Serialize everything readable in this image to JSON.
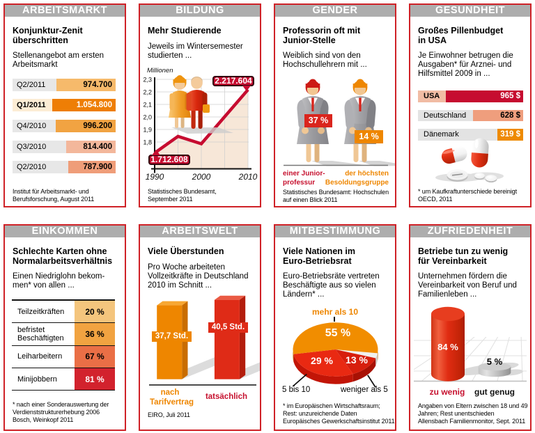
{
  "palette": {
    "border_red": "#cf2127",
    "crimson": "#c60c30",
    "bright_red": "#df2b17",
    "orange": "#ee8600",
    "header_gray": "#adadad",
    "label_gray": "#e7e7e7",
    "area_peach": "#f7e7d8",
    "shadow_gray": "#dcdcdc"
  },
  "panels": {
    "arbeitsmarkt": {
      "header": "ARBEITSMARKT",
      "title": "Konjunktur-Zenit\nüberschritten",
      "subtitle": "Stellenangebot am ersten\nArbeitsmarkt",
      "source": "Institut für Arbeitsmarkt- und\nBerufsforschung, August 2011"
    },
    "bildung": {
      "header": "BILDUNG",
      "title": "Mehr Studierende",
      "subtitle": "Jeweils im Wintersemester\nstudierten ...",
      "source": "Statistisches Bundesamt,\nSeptember 2011"
    },
    "gender": {
      "header": "GENDER",
      "title": "Professorin oft mit\nJunior-Stelle",
      "subtitle": "Weiblich sind von den\nHochschullehrern mit ...",
      "source": "Statistisches Bundesamt: Hochschulen\nauf einen Blick 2011"
    },
    "gesundheit": {
      "header": "GESUNDHEIT",
      "title": "Großes Pillenbudget\nin USA",
      "subtitle": "Je Einwohner betrugen die\nAusgaben* für Arznei- und\nHilfsmittel 2009 in ...",
      "source": "* um Kaufkraftunterschiede bereinigt\nOECD, 2011"
    },
    "einkommen": {
      "header": "EINKOMMEN",
      "title": "Schlechte Karten ohne\nNormalarbeitsverhältnis",
      "subtitle": "Einen Niedriglohn bekom-\nmen* von allen ...",
      "source": "* nach einer Sonderauswertung der\nVerdienststrukturerhebung 2006\nBosch, Weinkopf 2011"
    },
    "arbeitswelt": {
      "header": "ARBEITSWELT",
      "title": "Viele Überstunden",
      "subtitle": "Pro Woche arbeiteten\nVollzeitkräfte in Deutschland\n2010 im Schnitt ...",
      "source": "EIRO, Juli 2011"
    },
    "mitbestimmung": {
      "header": "MITBESTIMMUNG",
      "title": "Viele Nationen im\nEuro-Betriebsrat",
      "subtitle": "Euro-Betriebsräte vertreten\nBeschäftigte aus so vielen\nLändern* ...",
      "source": "* im Europäischen Wirtschaftsraum;\nRest: unzureichende Daten\nEuropäisches Gewerkschaftsinstitut 2011"
    },
    "zufriedenheit": {
      "header": "ZUFRIEDENHEIT",
      "title": "Betriebe tun zu wenig\nfür Vereinbarkeit",
      "subtitle": "Unternehmen fördern die\nVereinbarkeit von Beruf und\nFamilienleben ...",
      "source": "Angaben von Eltern zwischen 18 und 49\nJahren; Rest unentschieden\nAllensbach Familienmonitor, Sept. 2011"
    }
  },
  "chart_data": [
    {
      "panel": "arbeitsmarkt",
      "type": "bar",
      "orientation": "horizontal",
      "title": "Stellenangebot am ersten Arbeitsmarkt",
      "categories": [
        "Q2/2011",
        "Q1/2011",
        "Q4/2010",
        "Q3/2010",
        "Q2/2010"
      ],
      "values": [
        974700,
        1054800,
        996200,
        814400,
        787900
      ],
      "value_labels": [
        "974.700",
        "1.054.800",
        "996.200",
        "814.400",
        "787.900"
      ],
      "highlight_index": 1,
      "bar_colors": [
        "#f6ba6b",
        "#ee7e05",
        "#f1a342",
        "#f3b79b",
        "#ef9d79"
      ],
      "value_text_colors": [
        "#000000",
        "#ffffff",
        "#000000",
        "#000000",
        "#000000"
      ],
      "label_bg": "#e7e7e7",
      "highlight_label_bg": "#fcedd5"
    },
    {
      "panel": "bildung",
      "type": "line",
      "title": "Jeweils im Wintersemester studierten ...",
      "x": [
        1990,
        1995,
        2000,
        2010
      ],
      "y": [
        1.712608,
        1.845,
        1.786,
        2.217604
      ],
      "first_point_label": "1.712.608",
      "last_point_label": "2.217.604",
      "ylabel": "Millionen",
      "ytick_values": [
        2.3,
        2.2,
        2.1,
        2.0,
        1.9,
        1.8
      ],
      "ytick_labels": [
        "2,3",
        "2,2",
        "2,1",
        "2,0",
        "1,9",
        "1,8"
      ],
      "xtick_labels": [
        "1990",
        "2000",
        "2010"
      ],
      "xlim": [
        1990,
        2010
      ],
      "ylim_top": 2.3,
      "grid": true,
      "line_color": "#c60c30",
      "area_color": "#f7e7d8"
    },
    {
      "panel": "gender",
      "type": "pictogram",
      "title": "Weiblich sind von den Hochschullehrern mit ...",
      "items": [
        {
          "label": "einer Junior-\nprofessur",
          "value": 37,
          "value_label": "37 %",
          "color": "#da251d"
        },
        {
          "label": "der höchsten\nBesoldungsgruppe",
          "value": 14,
          "value_label": "14 %",
          "color": "#ee8600"
        }
      ]
    },
    {
      "panel": "gesundheit",
      "type": "bar",
      "orientation": "horizontal",
      "title": "Ausgaben für Arznei- und Hilfsmittel 2009 je Einwohner",
      "categories": [
        "USA",
        "Deutschland",
        "Dänemark"
      ],
      "values": [
        965,
        628,
        319
      ],
      "value_labels": [
        "965 $",
        "628 $",
        "319 $"
      ],
      "bar_colors": [
        "#c60c30",
        "#ef9e7d",
        "#ee8a00"
      ],
      "value_text_colors": [
        "#ffffff",
        "#000000",
        "#ffffff"
      ],
      "label_bgs": [
        "#f1bca4",
        "#e3e3e3",
        "#e3e3e3"
      ],
      "bold_labels": [
        true,
        false,
        false
      ]
    },
    {
      "panel": "einkommen",
      "type": "table",
      "title": "Einen Niedriglohn bekommen von allen ...",
      "rows": [
        {
          "label": "Teilzeitkräften",
          "value": 20,
          "value_label": "20 %",
          "color": "#f4c57d",
          "text_color": "#000000"
        },
        {
          "label": "befristet\nBeschäftigten",
          "value": 36,
          "value_label": "36 %",
          "color": "#f1a341",
          "text_color": "#000000"
        },
        {
          "label": "Leiharbeitern",
          "value": 67,
          "value_label": "67 %",
          "color": "#ea6f46",
          "text_color": "#000000"
        },
        {
          "label": "Minijobbern",
          "value": 81,
          "value_label": "81 %",
          "color": "#d2222d",
          "text_color": "#ffffff"
        }
      ]
    },
    {
      "panel": "arbeitswelt",
      "type": "bar3d",
      "title": "Wochenarbeitszeit von Vollzeitkräften in Deutschland 2010",
      "categories": [
        "nach\nTarifvertrag",
        "tatsächlich"
      ],
      "values": [
        37.7,
        40.5
      ],
      "value_labels": [
        "37,7 Std.",
        "40,5 Std."
      ],
      "colors": [
        "#ee8600",
        "#df2b17"
      ],
      "category_label_colors": [
        "#ee8600",
        "#c6102e"
      ]
    },
    {
      "panel": "mitbestimmung",
      "type": "pie",
      "title": "Euro-Betriebsräte vertreten Beschäftigte aus so vielen Ländern",
      "slices": [
        {
          "label": "",
          "value": 3,
          "value_label": "",
          "color": "#f0f0ee"
        },
        {
          "label": "weniger als 5",
          "value": 13,
          "value_label": "13 %",
          "color": "#d71f0d"
        },
        {
          "label": "5 bis 10",
          "value": 29,
          "value_label": "29 %",
          "color": "#e92912"
        },
        {
          "label": "mehr als 10",
          "value": 55,
          "value_label": "55 %",
          "color": "#f18d00"
        }
      ],
      "start_angle_deg": 8
    },
    {
      "panel": "zufriedenheit",
      "type": "cylinder",
      "title": "Unternehmen fördern die Vereinbarkeit von Beruf und Familienleben ...",
      "categories": [
        "zu wenig",
        "gut genug"
      ],
      "values": [
        84,
        5
      ],
      "value_labels": [
        "84 %",
        "5 %"
      ],
      "colors": [
        "#df2b17",
        "#b9b9b9"
      ],
      "category_label_colors": [
        "#c6102e",
        "#111111"
      ]
    }
  ]
}
